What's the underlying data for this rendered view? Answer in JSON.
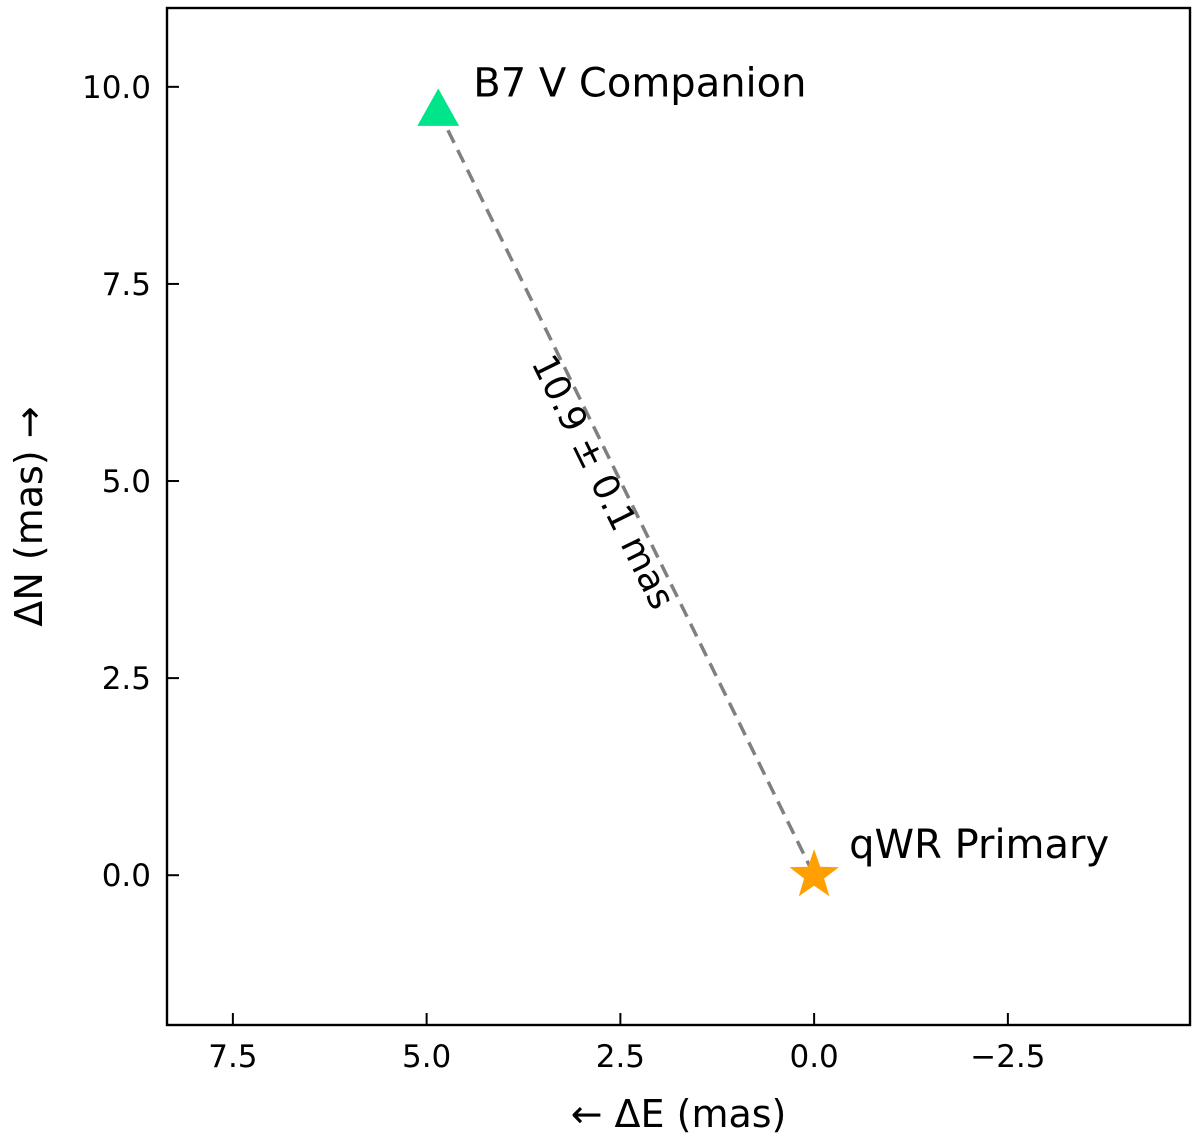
{
  "chart_data": {
    "type": "scatter",
    "title": "",
    "xlabel": "← ΔE (mas)",
    "ylabel": "ΔN (mas) →",
    "xlim": [
      8.35,
      -4.85
    ],
    "ylim": [
      -1.9,
      11.0
    ],
    "x_inverted": true,
    "grid": false,
    "xticks": [
      {
        "value": 7.5,
        "label": "7.5"
      },
      {
        "value": 5.0,
        "label": "5.0"
      },
      {
        "value": 2.5,
        "label": "2.5"
      },
      {
        "value": 0.0,
        "label": "0.0"
      },
      {
        "value": -2.5,
        "label": "−2.5"
      }
    ],
    "yticks": [
      {
        "value": 0.0,
        "label": "0.0"
      },
      {
        "value": 2.5,
        "label": "2.5"
      },
      {
        "value": 5.0,
        "label": "5.0"
      },
      {
        "value": 7.5,
        "label": "7.5"
      },
      {
        "value": 10.0,
        "label": "10.0"
      }
    ],
    "points": [
      {
        "name": "qWR Primary",
        "x": 0.0,
        "y": 0.0,
        "marker": "star",
        "color": "#FF9F00"
      },
      {
        "name": "B7 V Companion",
        "x": 4.85,
        "y": 9.7,
        "marker": "triangle",
        "color": "#00E58A"
      }
    ],
    "separation": {
      "label": "10.9 ± 0.1 mas",
      "line_style": "dashed",
      "color": "#808080"
    }
  }
}
